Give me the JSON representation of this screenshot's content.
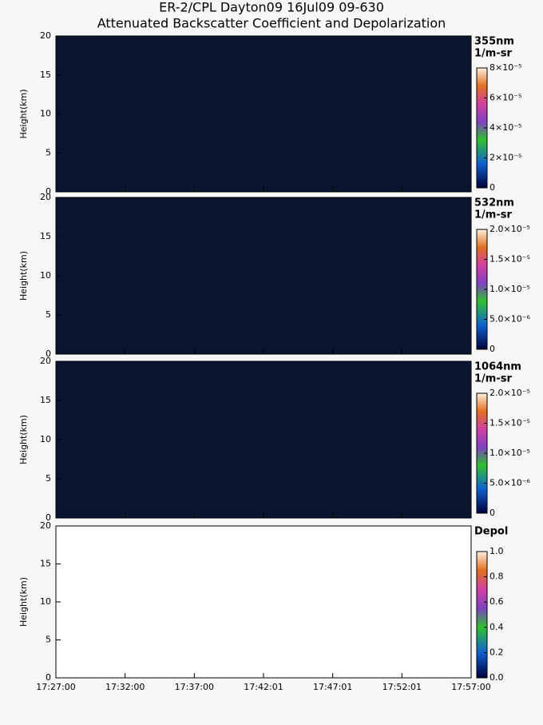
{
  "header": {
    "title": "ER-2/CPL Dayton09 16Jul09 09-630",
    "subtitle": "Attenuated Backscatter Coefficient and Depolarization"
  },
  "chart_data": [
    {
      "type": "heatmap",
      "ylabel": "Height(km)",
      "ylim": [
        0,
        20
      ],
      "yticks": [
        0,
        5,
        10,
        15,
        20
      ],
      "colorbar": {
        "label": [
          "355nm",
          "1/m-sr"
        ],
        "lim": [
          0,
          8e-05
        ],
        "ticks": [
          0,
          {
            "value": 2e-05,
            "label": "2×10⁻⁵"
          },
          {
            "value": 4e-05,
            "label": "4×10⁻⁵"
          },
          {
            "value": 6e-05,
            "label": "6×10⁻⁵"
          },
          {
            "value": 8e-05,
            "label": "8×10⁻⁵"
          }
        ]
      }
    },
    {
      "type": "heatmap",
      "ylabel": "Height(km)",
      "ylim": [
        0,
        20
      ],
      "yticks": [
        0,
        5,
        10,
        15,
        20
      ],
      "colorbar": {
        "label": [
          "532nm",
          "1/m-sr"
        ],
        "lim": [
          0,
          2e-05
        ],
        "ticks": [
          0,
          {
            "value": 5e-06,
            "label": "5.0×10⁻⁶"
          },
          {
            "value": 1e-05,
            "label": "1.0×10⁻⁵"
          },
          {
            "value": 1.5e-05,
            "label": "1.5×10⁻⁵"
          },
          {
            "value": 2e-05,
            "label": "2.0×10⁻⁵"
          }
        ]
      }
    },
    {
      "type": "heatmap",
      "ylabel": "Height(km)",
      "ylim": [
        0,
        20
      ],
      "yticks": [
        0,
        5,
        10,
        15,
        20
      ],
      "colorbar": {
        "label": [
          "1064nm",
          "1/m-sr"
        ],
        "lim": [
          0,
          2e-05
        ],
        "ticks": [
          0,
          {
            "value": 5e-06,
            "label": "5.0×10⁻⁶"
          },
          {
            "value": 1e-05,
            "label": "1.0×10⁻⁵"
          },
          {
            "value": 1.5e-05,
            "label": "1.5×10⁻⁵"
          },
          {
            "value": 2e-05,
            "label": "2.0×10⁻⁵"
          }
        ]
      }
    },
    {
      "type": "heatmap",
      "ylabel": "Height(km)",
      "ylim": [
        0,
        20
      ],
      "yticks": [
        0,
        5,
        10,
        15,
        20
      ],
      "categories": [
        "17:27:00",
        "17:32:00",
        "17:37:00",
        "17:42:01",
        "17:47:01",
        "17:52:01",
        "17:57:00"
      ],
      "colorbar": {
        "label": [
          "Depol"
        ],
        "lim": [
          0,
          1
        ],
        "ticks": [
          {
            "value": 0,
            "label": "0.0"
          },
          0.2,
          0.4,
          0.6,
          0.8,
          {
            "value": 1,
            "label": "1.0"
          }
        ]
      }
    }
  ]
}
